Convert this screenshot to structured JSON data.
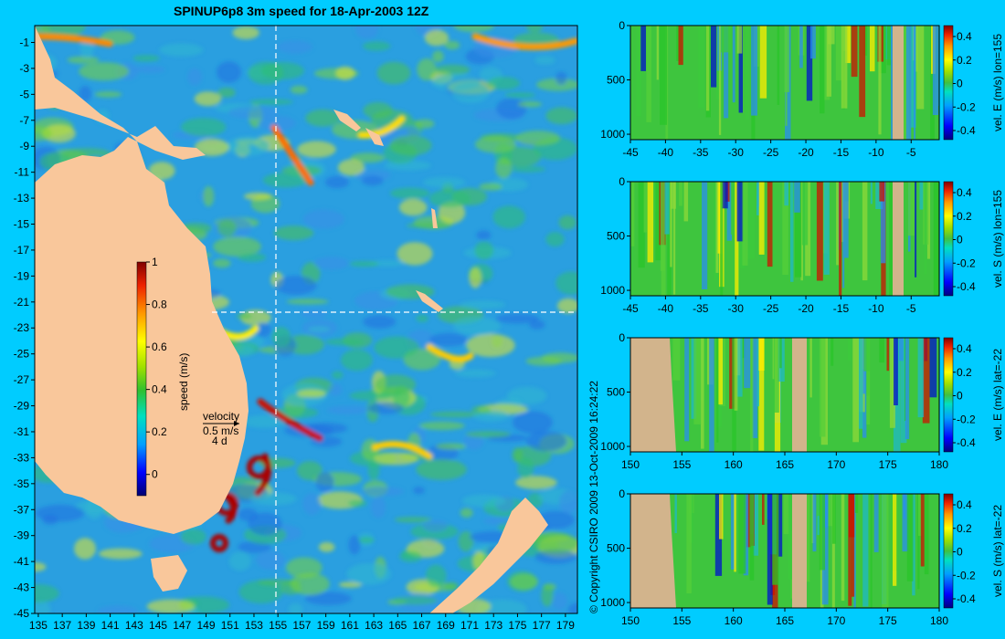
{
  "title": "SPINUP6p8 3m speed for 18-Apr-2003 12Z",
  "copyright": "© Copyright CSIRO 2009  13-Oct-2009 16:24:22",
  "colors": {
    "background": "#00ccff",
    "land": "#f9c79b",
    "section_land": "#d2b48c",
    "axis": "#000000"
  },
  "chart_data": [
    {
      "type": "heatmap",
      "title": "SPINUP6p8 3m speed for 18-Apr-2003 12Z",
      "x_ticks": [
        135,
        137,
        139,
        141,
        143,
        145,
        147,
        149,
        151,
        153,
        155,
        157,
        159,
        161,
        163,
        165,
        167,
        169,
        171,
        173,
        175,
        177,
        179
      ],
      "y_ticks": [
        -1,
        -3,
        -5,
        -7,
        -9,
        -11,
        -13,
        -15,
        -17,
        -19,
        -21,
        -23,
        -25,
        -27,
        -29,
        -31,
        -33,
        -35,
        -37,
        -39,
        -41,
        -43,
        -45
      ],
      "xlim": [
        134.7,
        180
      ],
      "ylim": [
        -45,
        0.3
      ],
      "colorbar": {
        "label": "speed (m/s)",
        "ticks": [
          0,
          0.2,
          0.4,
          0.6,
          0.8,
          1
        ],
        "range": [
          -0.1,
          1
        ]
      },
      "legend": {
        "label": "velocity",
        "value": "0.5 m/s",
        "duration": "4 d"
      },
      "section_lines": {
        "lon": 155,
        "lat": -22
      },
      "grid": false
    },
    {
      "type": "heatmap",
      "label": "vel. E (m/s) lon=155",
      "x_ticks": [
        -45,
        -40,
        -35,
        -30,
        -25,
        -20,
        -15,
        -10,
        -5
      ],
      "y_ticks": [
        0,
        500,
        1000
      ],
      "xlim": [
        -45,
        -1
      ],
      "ylim": [
        1050,
        0
      ],
      "colorbar_ticks": [
        0.4,
        0.2,
        0,
        -0.2,
        -0.4
      ]
    },
    {
      "type": "heatmap",
      "label": "vel. S (m/s) lon=155",
      "x_ticks": [
        -45,
        -40,
        -35,
        -30,
        -25,
        -20,
        -15,
        -10,
        -5
      ],
      "y_ticks": [
        0,
        500,
        1000
      ],
      "xlim": [
        -45,
        -1
      ],
      "ylim": [
        1050,
        0
      ],
      "colorbar_ticks": [
        0.4,
        0.2,
        0,
        -0.2,
        -0.4
      ]
    },
    {
      "type": "heatmap",
      "label": "vel. E (m/s) lat=-22",
      "x_ticks": [
        150,
        155,
        160,
        165,
        170,
        175,
        180
      ],
      "y_ticks": [
        0,
        500,
        1000
      ],
      "xlim": [
        150,
        180
      ],
      "ylim": [
        1050,
        0
      ],
      "colorbar_ticks": [
        0.4,
        0.2,
        0,
        -0.2,
        -0.4
      ]
    },
    {
      "type": "heatmap",
      "label": "vel. S (m/s) lat=-22",
      "x_ticks": [
        150,
        155,
        160,
        165,
        170,
        175,
        180
      ],
      "y_ticks": [
        0,
        500,
        1000
      ],
      "xlim": [
        150,
        180
      ],
      "ylim": [
        1050,
        0
      ],
      "colorbar_ticks": [
        0.4,
        0.2,
        0,
        -0.2,
        -0.4
      ]
    }
  ]
}
